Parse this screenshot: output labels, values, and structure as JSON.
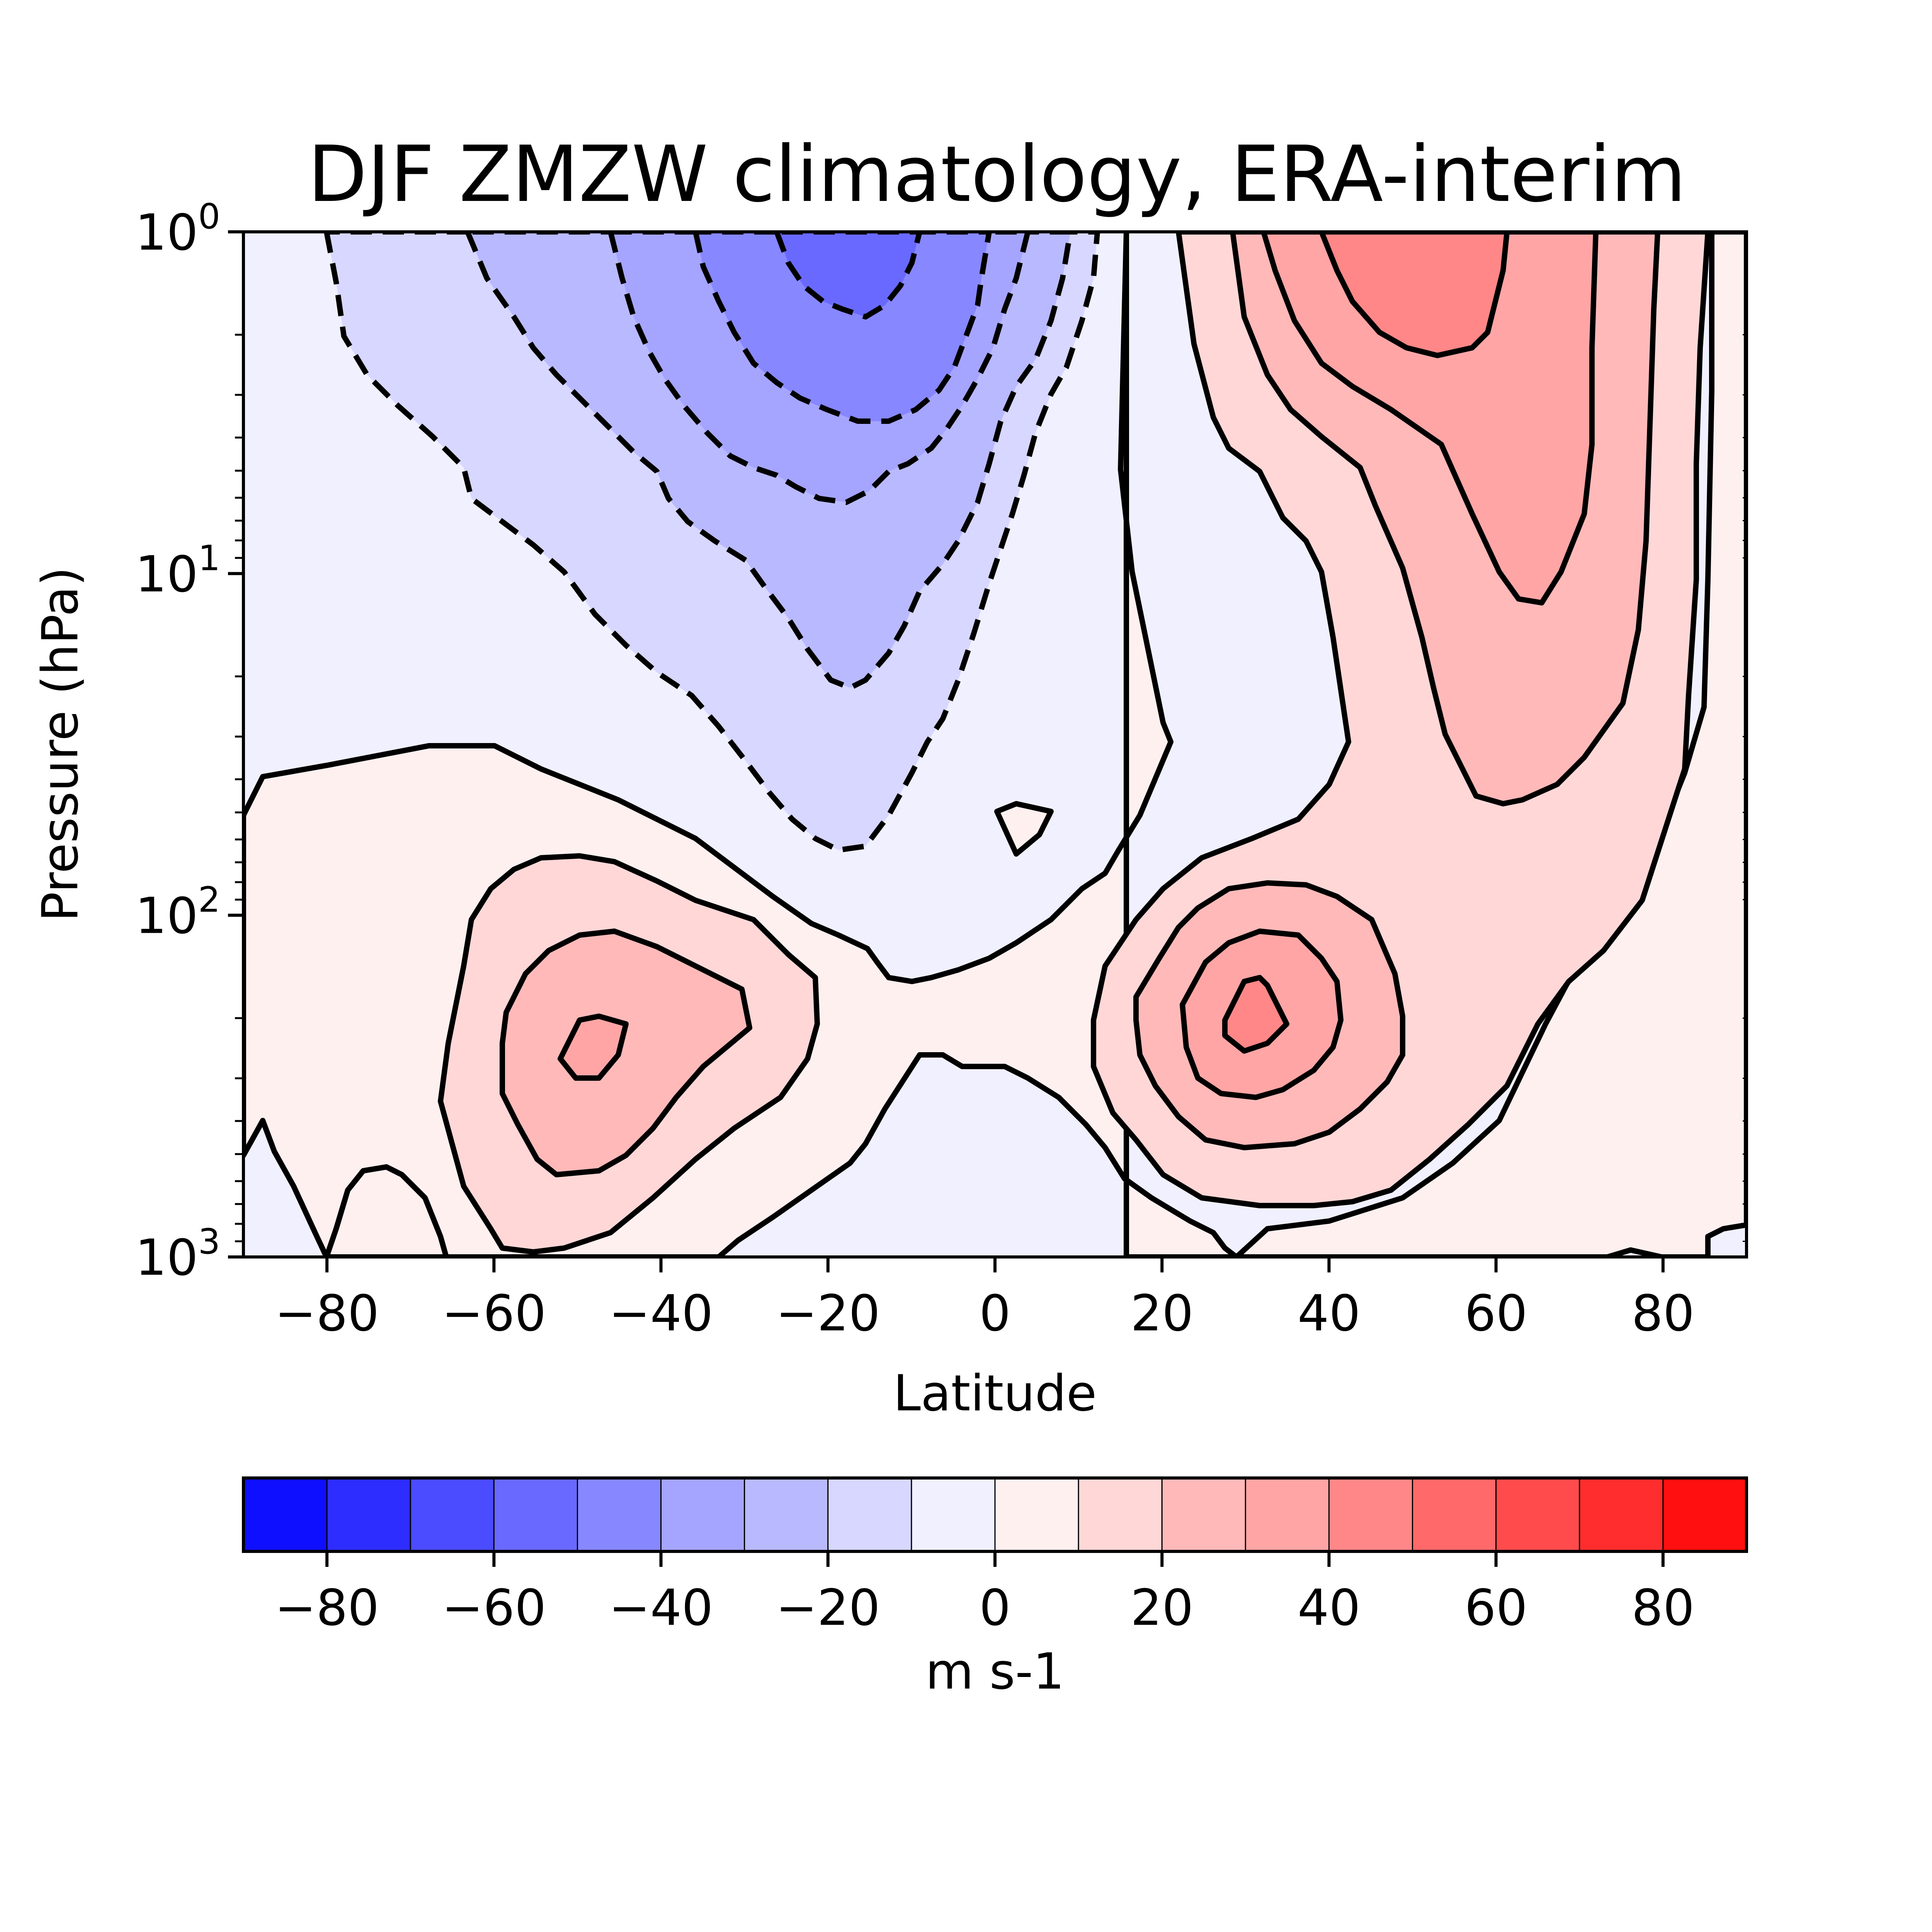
{
  "chart_data": {
    "type": "heatmap",
    "subtype": "filled-contour",
    "title": "DJF ZMZW climatology, ERA-interim",
    "xlabel": "Latitude",
    "ylabel": "Pressure (hPa)",
    "xlim": [
      -90,
      90
    ],
    "ylim": [
      1000,
      1
    ],
    "yscale": "log",
    "x_ticks": [
      -80,
      -60,
      -40,
      -20,
      0,
      20,
      40,
      60,
      80
    ],
    "x_tick_labels": [
      "−80",
      "−60",
      "−40",
      "−20",
      "0",
      "20",
      "40",
      "60",
      "80"
    ],
    "y_ticks": [
      {
        "base": "10",
        "exp": "0",
        "value": 1
      },
      {
        "base": "10",
        "exp": "1",
        "value": 10
      },
      {
        "base": "10",
        "exp": "2",
        "value": 100
      },
      {
        "base": "10",
        "exp": "3",
        "value": 1000
      }
    ],
    "contour_interval": 10,
    "negative_contours": "dashed",
    "colorbar": {
      "label": "m s-1",
      "levels": [
        -90,
        -80,
        -70,
        -60,
        -50,
        -40,
        -30,
        -20,
        -10,
        0,
        10,
        20,
        30,
        40,
        50,
        60,
        70,
        80,
        90
      ],
      "colors": [
        "#0f0fff",
        "#2d2dff",
        "#4b4bff",
        "#6969ff",
        "#8787ff",
        "#a5a5ff",
        "#b9b9ff",
        "#d7d7ff",
        "#f0f0ff",
        "#fff0f0",
        "#ffd7d7",
        "#ffb9b9",
        "#ffa5a5",
        "#ff8787",
        "#ff6969",
        "#ff4b4b",
        "#ff2d2d",
        "#ff0f0f"
      ],
      "ticks": [
        -80,
        -60,
        -40,
        -20,
        0,
        20,
        40,
        60,
        80
      ],
      "tick_labels": [
        "−80",
        "−60",
        "−40",
        "−20",
        "0",
        "20",
        "40",
        "60",
        "80"
      ]
    },
    "features": [
      {
        "feature": "tropical easterlies",
        "lat": -17,
        "p_hPa": 1,
        "u": -45
      },
      {
        "feature": "NH stratospheric polar-night jet",
        "lat": 55,
        "p_hPa": 1.5,
        "u": 45
      },
      {
        "feature": "NH subtropical jet",
        "lat": 30,
        "p_hPa": 200,
        "u": 40
      },
      {
        "feature": "SH subtropical jet",
        "lat": -48,
        "p_hPa": 250,
        "u": 32
      }
    ]
  }
}
